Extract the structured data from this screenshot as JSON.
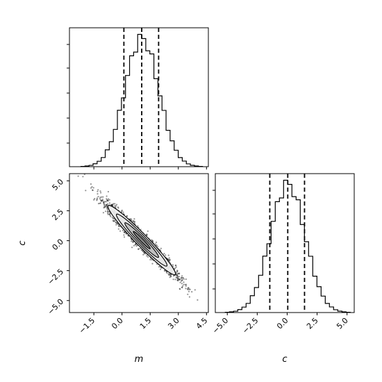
{
  "chart_data": [
    {
      "type": "histogram",
      "parameter": "m",
      "xlim": [
        -2.8,
        4.6
      ],
      "quantiles": [
        0.1,
        1.05,
        1.95
      ],
      "distribution": {
        "mean": 1.05,
        "std": 0.9
      },
      "bins": 30,
      "ticks_x": [
        -1.5,
        0.0,
        1.5,
        3.0,
        4.5
      ],
      "tick_labels_shown": false
    },
    {
      "type": "scatter_density",
      "x_parameter": "m",
      "y_parameter": "c",
      "xlim": [
        -2.8,
        4.6
      ],
      "ylim": [
        -6.0,
        5.6
      ],
      "correlation": -0.97,
      "contour_levels": [
        "0.5-sigma",
        "1-sigma",
        "1.5-sigma",
        "2-sigma"
      ],
      "x_ticks": [
        -1.5,
        0.0,
        1.5,
        3.0,
        4.5
      ],
      "x_tick_labels": [
        "−1.5",
        "0.0",
        "1.5",
        "3.0",
        "4.5"
      ],
      "y_ticks": [
        -5.0,
        -2.5,
        0.0,
        2.5,
        5.0
      ],
      "y_tick_labels": [
        "−5.0",
        "−2.5",
        "0.0",
        "2.5",
        "5.0"
      ],
      "xlabel": "m",
      "ylabel": "c"
    },
    {
      "type": "histogram",
      "parameter": "c",
      "xlim": [
        -6.0,
        5.6
      ],
      "quantiles": [
        -1.45,
        0.05,
        1.45
      ],
      "distribution": {
        "mean": 0.05,
        "std": 1.45
      },
      "bins": 30,
      "x_ticks": [
        -5.0,
        -2.5,
        0.0,
        2.5,
        5.0
      ],
      "x_tick_labels": [
        "−5.0",
        "−2.5",
        "0.0",
        "2.5",
        "5.0"
      ],
      "xlabel": "c"
    }
  ]
}
